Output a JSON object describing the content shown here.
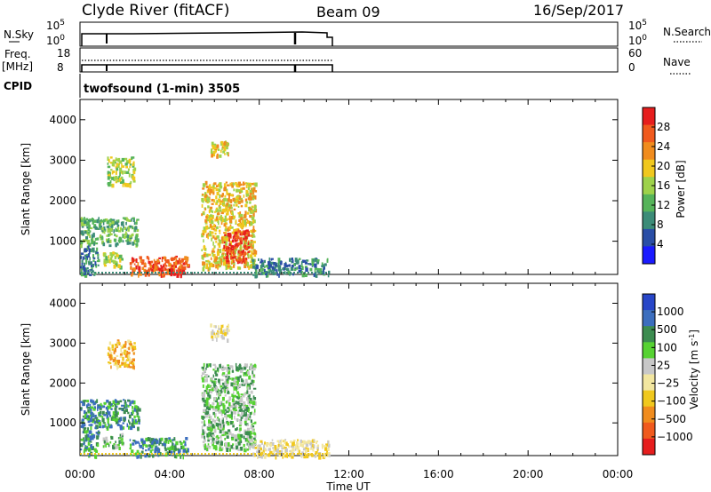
{
  "header": {
    "station": "Clyde River (fitACF)",
    "beam": "Beam 09",
    "date": "16/Sep/2017"
  },
  "summary_panels": {
    "nsky": {
      "label": "N.Sky",
      "ticks": [
        "10^5",
        "10^0"
      ],
      "right_ticks": [
        "10^5",
        "10^0"
      ],
      "right_label": "N.Search"
    },
    "freq": {
      "label_lines": [
        "Freq.",
        "[MHz]"
      ],
      "ticks": [
        "18",
        "8"
      ],
      "right_ticks": [
        "60",
        "0"
      ],
      "right_label": "Nave"
    },
    "cpid": {
      "label": "CPID",
      "value": "twofsound (1-min) 3505"
    }
  },
  "time_axis": {
    "ticks": [
      "00:00",
      "04:00",
      "08:00",
      "12:00",
      "16:00",
      "20:00",
      "00:00"
    ],
    "title": "Time UT"
  },
  "colors": {
    "power_scale": [
      "#1a1aff",
      "#2a4ea6",
      "#3c8c78",
      "#56b45a",
      "#9ed24a",
      "#f0c81e",
      "#f08c1e",
      "#f05a1e",
      "#e61e1e"
    ],
    "velocity_scale": [
      "#e61e1e",
      "#f05a1e",
      "#f08c1e",
      "#f0c81e",
      "#f2e6a0",
      "#c8c8c8",
      "#56d232",
      "#3c8c50",
      "#3c6ebe",
      "#2846c8"
    ]
  },
  "chart_data": [
    {
      "type": "heatmap",
      "name": "power",
      "xlabel": "",
      "ylabel": "Slant Range [km]",
      "x_range_hours": [
        0,
        24
      ],
      "y_range_km": [
        180,
        4500
      ],
      "y_ticks": [
        1000,
        2000,
        3000,
        4000
      ],
      "colorbar": {
        "label": "Power [dB]",
        "range": [
          0,
          32
        ],
        "ticks": [
          4,
          8,
          12,
          16,
          20,
          24,
          28
        ]
      },
      "data_extent_hours": [
        0.0,
        11.1
      ],
      "scatter_clusters": [
        {
          "t": [
            0.0,
            2.6
          ],
          "r": [
            900,
            1600
          ],
          "level": 3
        },
        {
          "t": [
            0.0,
            0.8
          ],
          "r": [
            180,
            900
          ],
          "level": 2
        },
        {
          "t": [
            1.0,
            1.9
          ],
          "r": [
            400,
            750
          ],
          "level": 4
        },
        {
          "t": [
            2.2,
            4.8
          ],
          "r": [
            180,
            650
          ],
          "level": 7
        },
        {
          "t": [
            3.6,
            4.6
          ],
          "r": [
            180,
            420
          ],
          "level": 8
        },
        {
          "t": [
            5.4,
            7.8
          ],
          "r": [
            350,
            2500
          ],
          "level": 5
        },
        {
          "t": [
            6.4,
            7.5
          ],
          "r": [
            500,
            1300
          ],
          "level": 8
        },
        {
          "t": [
            5.8,
            6.6
          ],
          "r": [
            3100,
            3500
          ],
          "level": 5
        },
        {
          "t": [
            1.2,
            2.4
          ],
          "r": [
            2400,
            3100
          ],
          "level": 4
        },
        {
          "t": [
            7.6,
            11.1
          ],
          "r": [
            180,
            600
          ],
          "level": 2
        }
      ]
    },
    {
      "type": "heatmap",
      "name": "velocity",
      "xlabel": "Time UT",
      "ylabel": "Slant Range [km]",
      "x_range_hours": [
        0,
        24
      ],
      "y_range_km": [
        180,
        4500
      ],
      "y_ticks": [
        1000,
        2000,
        3000,
        4000
      ],
      "colorbar": {
        "label": "Velocity [m s^-1]",
        "ticks": [
          "1000",
          "500",
          "100",
          "25",
          "-25",
          "-100",
          "-500",
          "-1000"
        ]
      },
      "data_extent_hours": [
        0.0,
        11.1
      ],
      "scatter_clusters": [
        {
          "t": [
            0.0,
            2.6
          ],
          "r": [
            900,
            1600
          ],
          "level": 7
        },
        {
          "t": [
            0.0,
            0.8
          ],
          "r": [
            180,
            900
          ],
          "level": 7
        },
        {
          "t": [
            1.0,
            1.9
          ],
          "r": [
            400,
            750
          ],
          "level": 6
        },
        {
          "t": [
            2.2,
            4.8
          ],
          "r": [
            180,
            650
          ],
          "level": 7
        },
        {
          "t": [
            5.4,
            7.8
          ],
          "r": [
            350,
            2500
          ],
          "level": 6
        },
        {
          "t": [
            5.8,
            6.6
          ],
          "r": [
            3100,
            3500
          ],
          "level": 4
        },
        {
          "t": [
            1.2,
            2.4
          ],
          "r": [
            2400,
            3100
          ],
          "level": 3
        },
        {
          "t": [
            7.6,
            11.1
          ],
          "r": [
            180,
            600
          ],
          "level": 4
        }
      ]
    }
  ]
}
